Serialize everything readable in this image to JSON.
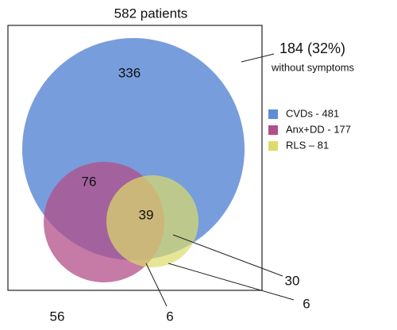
{
  "title": "582 patients",
  "annotation": {
    "main": "184 (32%)",
    "sub": "without symptoms"
  },
  "sets": [
    {
      "label": "CVDs - 481",
      "color": "#5f8cd6"
    },
    {
      "label": "Anx+DD - 177",
      "color": "#b14f88"
    },
    {
      "label": "RLS  – 81",
      "color": "#dcdc6a"
    }
  ],
  "regions": {
    "cvd_only": "336",
    "cvd_anx": "76",
    "all_three": "39",
    "anx_only": "56",
    "anx_rls": "6",
    "cvd_rls": "30",
    "rls_only": "6"
  }
}
